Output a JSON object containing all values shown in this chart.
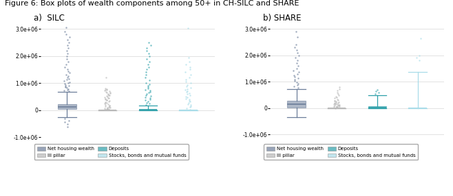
{
  "title": "Figure 6: Box plots of wealth components among 50+ in CH-SILC and SHARE",
  "panel_a_label": "a)  SILC",
  "panel_b_label": "b) SHARE",
  "colors": {
    "net_housing": "#6b7d99",
    "iii_pillar": "#b8b8b8",
    "deposits": "#2b9fa8",
    "stocks": "#a8dce8"
  },
  "component_keys": [
    "net_housing",
    "iii_pillar",
    "deposits",
    "stocks"
  ],
  "silc": {
    "net_housing": {
      "q1": 50000,
      "median": 120000,
      "q3": 220000,
      "whisker_low": -250000,
      "whisker_high": 680000,
      "outliers_high": [
        700000,
        730000,
        760000,
        790000,
        820000,
        850000,
        880000,
        910000,
        940000,
        970000,
        1000000,
        1040000,
        1080000,
        1120000,
        1160000,
        1200000,
        1260000,
        1320000,
        1380000,
        1440000,
        1500000,
        1600000,
        1700000,
        1800000,
        1900000,
        2000000,
        2100000,
        2200000,
        2300000,
        2400000,
        2500000,
        2600000,
        2700000,
        2800000,
        2900000,
        3050000
      ],
      "outliers_low": [
        -320000,
        -380000,
        -440000,
        -520000,
        -620000
      ]
    },
    "iii_pillar": {
      "q1": 0,
      "median": 0,
      "q3": 0,
      "whisker_low": 0,
      "whisker_high": 0,
      "outliers_high": [
        15000,
        25000,
        35000,
        45000,
        55000,
        65000,
        75000,
        85000,
        95000,
        110000,
        125000,
        140000,
        160000,
        180000,
        200000,
        220000,
        240000,
        260000,
        280000,
        300000,
        320000,
        340000,
        360000,
        380000,
        400000,
        420000,
        440000,
        460000,
        480000,
        500000,
        520000,
        540000,
        560000,
        580000,
        600000,
        620000,
        640000,
        660000,
        680000,
        700000,
        720000,
        740000,
        760000,
        780000,
        800000,
        1200000
      ],
      "outliers_low": []
    },
    "deposits": {
      "q1": 0,
      "median": 8000,
      "q3": 25000,
      "whisker_low": 0,
      "whisker_high": 180000,
      "outliers_high": [
        200000,
        240000,
        280000,
        320000,
        360000,
        400000,
        440000,
        480000,
        520000,
        560000,
        600000,
        640000,
        680000,
        720000,
        760000,
        800000,
        850000,
        900000,
        950000,
        1000000,
        1100000,
        1200000,
        1300000,
        1400000,
        1500000,
        1600000,
        1700000,
        1800000,
        1900000,
        2000000,
        2100000,
        2200000,
        2300000,
        2400000,
        2500000
      ],
      "outliers_low": []
    },
    "stocks": {
      "q1": 0,
      "median": 0,
      "q3": 0,
      "whisker_low": 0,
      "whisker_high": 0,
      "outliers_high": [
        30000,
        70000,
        110000,
        150000,
        190000,
        230000,
        270000,
        310000,
        350000,
        390000,
        430000,
        470000,
        510000,
        550000,
        590000,
        630000,
        670000,
        710000,
        750000,
        790000,
        830000,
        880000,
        940000,
        1000000,
        1060000,
        1130000,
        1200000,
        1300000,
        1400000,
        1500000,
        1600000,
        1700000,
        1800000,
        1950000,
        3020000
      ],
      "outliers_low": []
    }
  },
  "share": {
    "net_housing": {
      "q1": 15000,
      "median": 140000,
      "q3": 270000,
      "whisker_low": -340000,
      "whisker_high": 730000,
      "outliers_high": [
        780000,
        830000,
        880000,
        930000,
        980000,
        1030000,
        1080000,
        1130000,
        1180000,
        1230000,
        1290000,
        1360000,
        1430000,
        1510000,
        1600000,
        1700000,
        1800000,
        1900000,
        2000000,
        2100000,
        2200000,
        2300000,
        2400000,
        2700000,
        2900000
      ],
      "outliers_low": []
    },
    "iii_pillar": {
      "q1": 0,
      "median": 0,
      "q3": 0,
      "whisker_low": 0,
      "whisker_high": 0,
      "outliers_high": [
        5000,
        12000,
        20000,
        30000,
        40000,
        50000,
        60000,
        70000,
        80000,
        90000,
        100000,
        110000,
        120000,
        130000,
        140000,
        150000,
        160000,
        170000,
        180000,
        190000,
        200000,
        215000,
        230000,
        250000,
        270000,
        290000,
        310000,
        340000,
        370000,
        400000,
        440000,
        490000,
        540000,
        600000,
        660000,
        730000,
        800000
      ],
      "outliers_low": []
    },
    "deposits": {
      "q1": 0,
      "median": 25000,
      "q3": 75000,
      "whisker_low": 0,
      "whisker_high": 490000,
      "outliers_high": [
        540000,
        590000,
        640000,
        700000
      ],
      "outliers_low": []
    },
    "stocks": {
      "q1": 0,
      "median": 0,
      "q3": 0,
      "whisker_low": 0,
      "whisker_high": 1380000,
      "outliers_high": [
        1800000,
        1900000,
        2000000,
        2650000
      ],
      "outliers_low": []
    }
  },
  "silc_ylim": [
    -900000,
    3200000
  ],
  "silc_yticks": [
    -1000000,
    0,
    1000000,
    2000000,
    3000000
  ],
  "share_ylim": [
    -1100000,
    3200000
  ],
  "share_yticks": [
    -1000000,
    0,
    1000000,
    2000000,
    3000000
  ],
  "background_color": "#ffffff",
  "grid_color": "#dddddd",
  "box_width": 0.45,
  "legend_items": [
    [
      "Net housing wealth",
      "net_housing"
    ],
    [
      "III pillar",
      "iii_pillar"
    ],
    [
      "Deposits",
      "deposits"
    ],
    [
      "Stocks, bonds and mutual funds",
      "stocks"
    ]
  ]
}
